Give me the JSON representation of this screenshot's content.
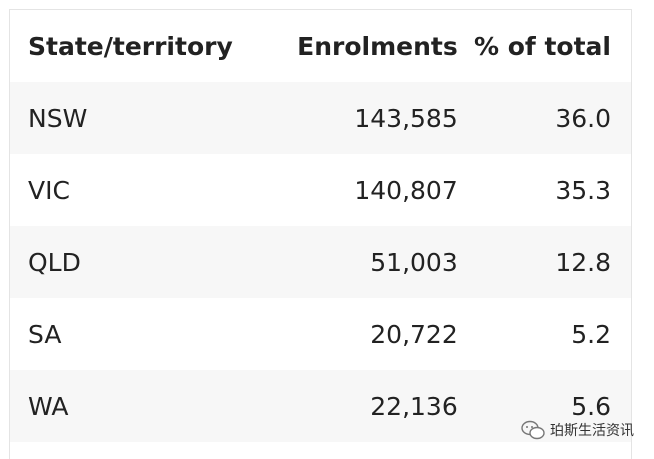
{
  "table": {
    "header": [
      "State/territory",
      "Enrolments",
      "% of total"
    ],
    "rows": [
      [
        "NSW",
        "143,585",
        "36.0"
      ],
      [
        "VIC",
        "140,807",
        "35.3"
      ],
      [
        "QLD",
        "51,003",
        "12.8"
      ],
      [
        "SA",
        "20,722",
        "5.2"
      ],
      [
        "WA",
        "22,136",
        "5.6"
      ]
    ]
  },
  "watermark": "珀斯生活资讯"
}
